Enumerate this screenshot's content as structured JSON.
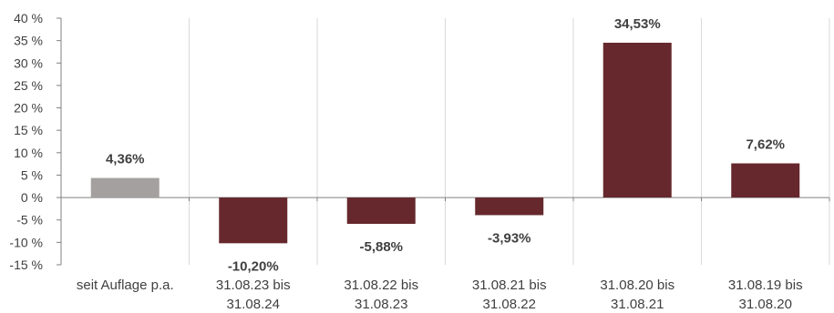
{
  "chart_data": {
    "type": "bar",
    "categories": [
      [
        "seit Auflage p.a."
      ],
      [
        "31.08.23 bis",
        "31.08.24"
      ],
      [
        "31.08.22 bis",
        "31.08.23"
      ],
      [
        "31.08.21 bis",
        "31.08.22"
      ],
      [
        "31.08.20 bis",
        "31.08.21"
      ],
      [
        "31.08.19 bis",
        "31.08.20"
      ]
    ],
    "values": [
      4.36,
      -10.2,
      -5.88,
      -3.93,
      34.53,
      7.62
    ],
    "data_labels": [
      "4,36%",
      "-10,20%",
      "-5,88%",
      "-3,93%",
      "34,53%",
      "7,62%"
    ],
    "bar_colors": [
      "#a5a0a0",
      "#66282d",
      "#66282d",
      "#66282d",
      "#66282d",
      "#66282d"
    ],
    "ylim": [
      -15,
      40
    ],
    "yticks": [
      40,
      35,
      30,
      25,
      20,
      15,
      10,
      5,
      0,
      -5,
      -10,
      -15
    ],
    "ytick_labels": [
      "40 %",
      "35 %",
      "30 %",
      "25 %",
      "20 %",
      "15 %",
      "10 %",
      "5 %",
      "0 %",
      "-5 %",
      "-10 %",
      "-15 %"
    ],
    "grid": "vertical",
    "grid_color": "#d9d9d9",
    "axis_color": "#808080",
    "label_color": "#404040"
  }
}
